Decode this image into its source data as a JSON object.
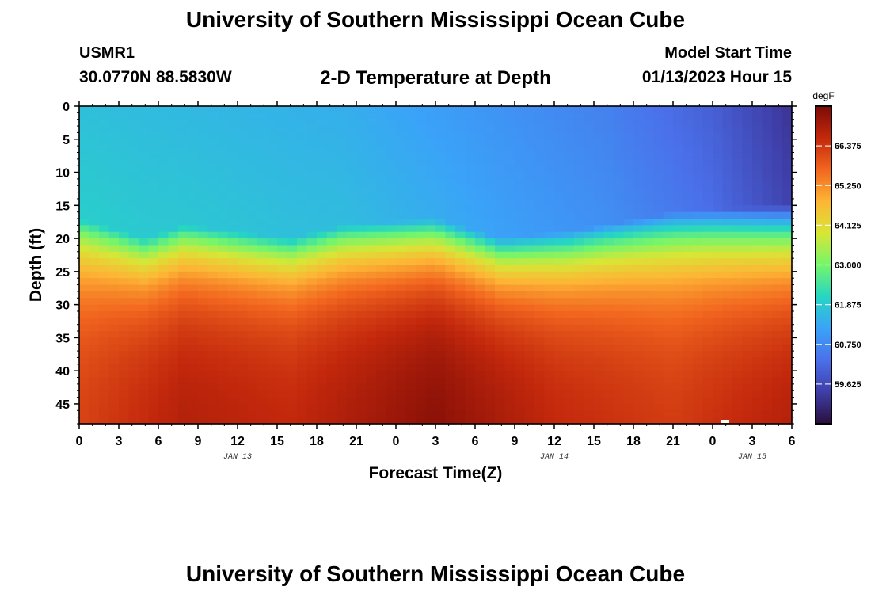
{
  "header": {
    "title": "University of Southern Mississippi Ocean Cube",
    "station_id": "USMR1",
    "coordinates": "30.0770N  88.5830W",
    "subtitle": "2-D Temperature at Depth",
    "model_start_label": "Model Start Time",
    "model_start_value": "01/13/2023 Hour 15"
  },
  "footer": {
    "title": "University of Southern Mississippi Ocean Cube"
  },
  "chart_data": {
    "type": "heatmap",
    "title": "2-D Temperature at Depth",
    "xlabel": "Forecast Time(Z)",
    "ylabel": "Depth (ft)",
    "x_ticks": [
      "0",
      "3",
      "6",
      "9",
      "12",
      "15",
      "18",
      "21",
      "0",
      "3",
      "6",
      "9",
      "12",
      "15",
      "18",
      "21",
      "0",
      "3",
      "6"
    ],
    "x_range_hours": [
      0,
      54
    ],
    "date_labels": [
      {
        "hour": 12,
        "label": "JAN 13"
      },
      {
        "hour": 36,
        "label": "JAN 14"
      },
      {
        "hour": 51,
        "label": "JAN 15"
      }
    ],
    "y_ticks": [
      0,
      5,
      10,
      15,
      20,
      25,
      30,
      35,
      40,
      45
    ],
    "y_range": [
      0,
      48
    ],
    "colorbar": {
      "unit": "degF",
      "min": 58.5,
      "max": 67.5,
      "ticks": [
        "66.375",
        "65.250",
        "64.125",
        "63.000",
        "61.875",
        "60.750",
        "59.625"
      ],
      "colors": [
        "#2a0f3c",
        "#3f3ea8",
        "#4a70ea",
        "#3aa3f8",
        "#26d6c2",
        "#75f56b",
        "#d8e636",
        "#fdb535",
        "#f2661f",
        "#c3280c",
        "#7b0a06"
      ]
    },
    "thermocline_depth_ft": [
      {
        "hour": 0,
        "depth": 17
      },
      {
        "hour": 5,
        "depth": 20
      },
      {
        "hour": 8,
        "depth": 18
      },
      {
        "hour": 16,
        "depth": 20
      },
      {
        "hour": 20,
        "depth": 18
      },
      {
        "hour": 27,
        "depth": 17
      },
      {
        "hour": 32,
        "depth": 20
      },
      {
        "hour": 37,
        "depth": 19
      },
      {
        "hour": 45,
        "depth": 16
      },
      {
        "hour": 54,
        "depth": 15
      }
    ],
    "upper_layer_temp_degF": [
      {
        "hour": 0,
        "temp": 61.7
      },
      {
        "hour": 20,
        "temp": 61.4
      },
      {
        "hour": 30,
        "temp": 61.0
      },
      {
        "hour": 40,
        "temp": 60.6
      },
      {
        "hour": 48,
        "temp": 60.0
      },
      {
        "hour": 54,
        "temp": 59.2
      }
    ],
    "bottom_temp_degF": [
      {
        "hour": 0,
        "temp": 66.2
      },
      {
        "hour": 8,
        "temp": 66.8
      },
      {
        "hour": 16,
        "temp": 66.6
      },
      {
        "hour": 27,
        "temp": 67.3
      },
      {
        "hour": 36,
        "temp": 66.6
      },
      {
        "hour": 45,
        "temp": 66.3
      },
      {
        "hour": 54,
        "temp": 66.8
      }
    ]
  }
}
